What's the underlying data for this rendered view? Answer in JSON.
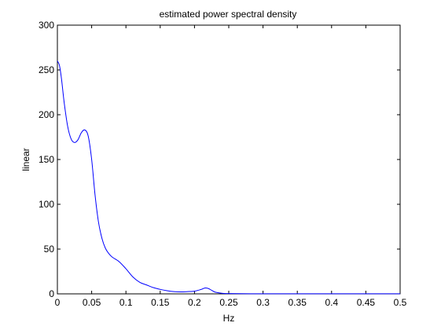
{
  "chart_data": {
    "type": "line",
    "title": "estimated power spectral density",
    "xlabel": "Hz",
    "ylabel": "linear",
    "xlim": [
      0,
      0.5
    ],
    "ylim": [
      0,
      300
    ],
    "grid": false,
    "x_ticks": [
      0,
      0.05,
      0.1,
      0.15,
      0.2,
      0.25,
      0.3,
      0.35,
      0.4,
      0.45,
      0.5
    ],
    "x_tick_labels": [
      "0",
      "0.05",
      "0.1",
      "0.15",
      "0.2",
      "0.25",
      "0.3",
      "0.35",
      "0.4",
      "0.45",
      "0.5"
    ],
    "y_ticks": [
      0,
      50,
      100,
      150,
      200,
      250,
      300
    ],
    "y_tick_labels": [
      "0",
      "50",
      "100",
      "150",
      "200",
      "250",
      "300"
    ],
    "series": [
      {
        "color": "#0000ff",
        "x": [
          0,
          0.003,
          0.006,
          0.01,
          0.015,
          0.02,
          0.025,
          0.03,
          0.035,
          0.04,
          0.045,
          0.05,
          0.055,
          0.06,
          0.065,
          0.07,
          0.075,
          0.08,
          0.09,
          0.1,
          0.11,
          0.12,
          0.13,
          0.14,
          0.15,
          0.16,
          0.17,
          0.18,
          0.19,
          0.2,
          0.21,
          0.215,
          0.22,
          0.225,
          0.23,
          0.24,
          0.25,
          0.3,
          0.35,
          0.4,
          0.45,
          0.5
        ],
        "y": [
          260,
          255,
          240,
          213,
          187,
          173,
          169,
          172,
          180,
          183,
          176,
          150,
          110,
          80,
          62,
          51,
          45,
          41,
          36,
          28,
          19,
          13,
          10,
          7,
          5,
          3.5,
          2.5,
          2.2,
          2.5,
          3,
          5,
          6.5,
          6,
          4,
          2,
          0.7,
          0.3,
          0.1,
          0.1,
          0.1,
          0.1,
          0.1
        ]
      }
    ]
  }
}
